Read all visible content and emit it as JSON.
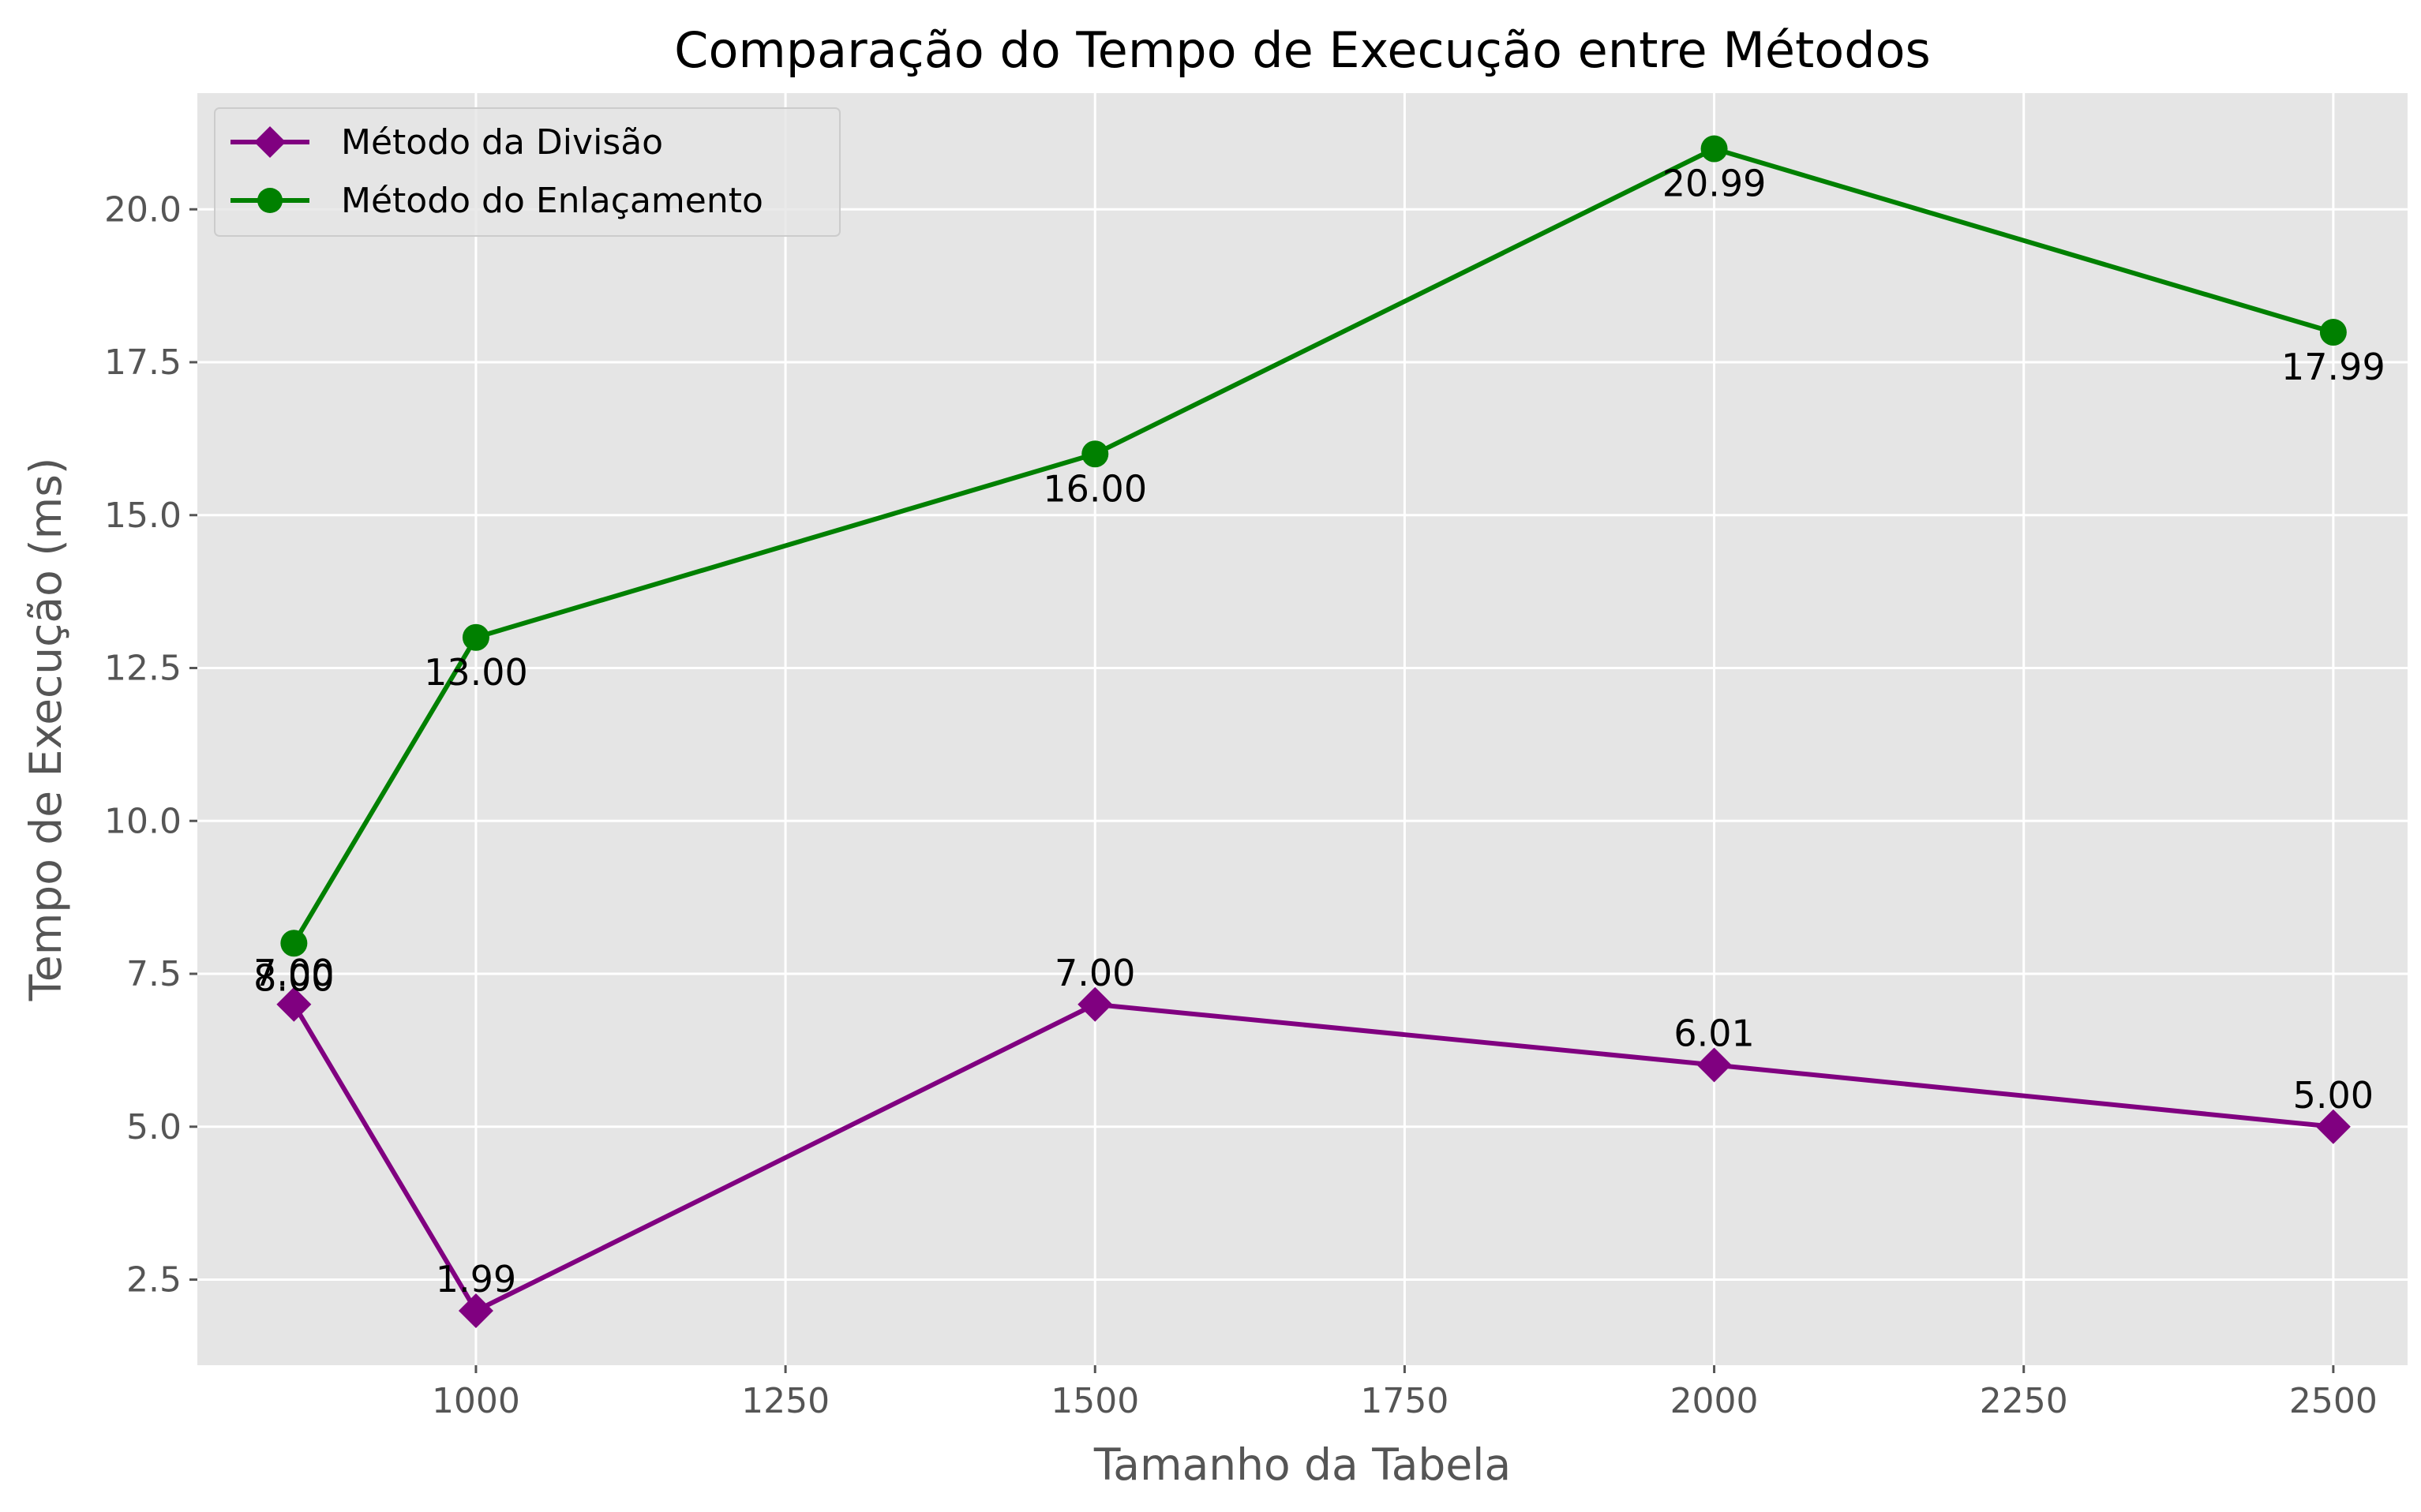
{
  "chart_data": {
    "type": "line",
    "title": "Comparação do Tempo de Execução entre Métodos",
    "xlabel": "Tamanho da Tabela",
    "ylabel": "Tempo de Execução (ms)",
    "xlim": [
      775,
      2560
    ],
    "ylim": [
      1.1,
      21.9
    ],
    "xticks": [
      1000,
      1250,
      1500,
      1750,
      2000,
      2250,
      2500
    ],
    "yticks": [
      2.5,
      5.0,
      7.5,
      10.0,
      12.5,
      15.0,
      17.5,
      20.0
    ],
    "xtick_labels": [
      "1000",
      "1250",
      "1500",
      "1750",
      "2000",
      "2250",
      "2500"
    ],
    "ytick_labels": [
      "2.5",
      "5.0",
      "7.5",
      "10.0",
      "12.5",
      "15.0",
      "17.5",
      "20.0"
    ],
    "grid": true,
    "legend_position": "top-left",
    "background_color": "#e5e5e5",
    "grid_color": "#ffffff",
    "series": [
      {
        "name": "Método da Divisão",
        "color": "#800080",
        "marker": "diamond",
        "label_position": "above",
        "x": [
          853,
          1000,
          1500,
          2000,
          2500
        ],
        "values": [
          7.0,
          1.99,
          7.0,
          6.01,
          5.0
        ],
        "labels": [
          "7.00",
          "1.99",
          "7.00",
          "6.01",
          "5.00"
        ]
      },
      {
        "name": "Método do Enlaçamento",
        "color": "#008000",
        "marker": "circle",
        "label_position": "below",
        "x": [
          853,
          1000,
          1500,
          2000,
          2500
        ],
        "values": [
          8.0,
          13.0,
          16.0,
          20.99,
          17.99
        ],
        "labels": [
          "8.00",
          "13.00",
          "16.00",
          "20.99",
          "17.99"
        ]
      }
    ]
  }
}
